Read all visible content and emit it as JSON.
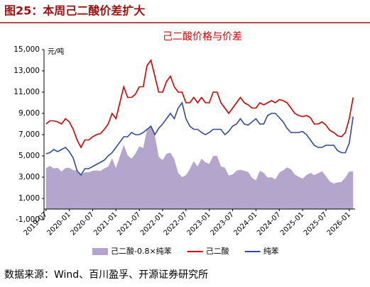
{
  "header": {
    "title": "图25：本周己二酸价差扩大"
  },
  "chart_data": {
    "type": "line",
    "title": "己二酸价格与价差",
    "y_unit": "元/吨",
    "x": [
      "2019-07",
      "2019-08",
      "2019-09",
      "2019-10",
      "2019-11",
      "2019-12",
      "2020-01",
      "2020-02",
      "2020-03",
      "2020-04",
      "2020-05",
      "2020-06",
      "2020-07",
      "2020-08",
      "2020-09",
      "2020-10",
      "2020-11",
      "2020-12",
      "2021-01",
      "2021-02",
      "2021-03",
      "2021-04",
      "2021-05",
      "2021-06",
      "2021-07",
      "2021-08",
      "2021-09",
      "2021-10",
      "2021-11",
      "2021-12",
      "2022-01",
      "2022-02",
      "2022-03",
      "2022-04",
      "2022-05",
      "2022-06",
      "2022-07",
      "2022-08",
      "2022-09",
      "2022-10",
      "2022-11",
      "2022-12",
      "2023-01",
      "2023-02",
      "2023-03",
      "2023-04",
      "2023-05",
      "2023-06",
      "2023-07",
      "2023-08",
      "2023-09",
      "2023-10",
      "2023-11",
      "2023-12",
      "2024-01",
      "2024-02",
      "2024-03",
      "2024-04",
      "2024-05",
      "2024-06",
      "2024-07",
      "2024-08",
      "2024-09",
      "2024-10",
      "2024-11",
      "2024-12",
      "2025-01",
      "2025-02",
      "2025-03",
      "2025-04",
      "2025-05",
      "2025-06",
      "2025-07",
      "2025-08",
      "2025-09",
      "2025-10",
      "2025-11",
      "2025-12",
      "2026-01",
      "2026-02"
    ],
    "xticks": [
      "2019-07",
      "2020-01",
      "2020-07",
      "2021-01",
      "2021-07",
      "2022-01",
      "2022-07",
      "2023-01",
      "2023-07",
      "2024-01",
      "2024-07",
      "2025-01",
      "2025-07",
      "2026-01"
    ],
    "series": [
      {
        "name": "己二酸-0.8×纯苯",
        "style": "area",
        "color": "#b3a5cc",
        "values": [
          3840,
          4060,
          3820,
          3880,
          3520,
          3860,
          3880,
          3660,
          3620,
          3240,
          3460,
          3460,
          3600,
          3640,
          3580,
          3820,
          4000,
          4760,
          3860,
          4960,
          6060,
          5060,
          4740,
          5200,
          5900,
          5740,
          7500,
          7760,
          6900,
          4920,
          4600,
          5200,
          5300,
          4700,
          3400,
          3000,
          3200,
          3760,
          4500,
          4000,
          4740,
          4400,
          4240,
          5000,
          5000,
          4000,
          3900,
          3160,
          3260,
          3600,
          3700,
          3600,
          3480,
          2940,
          2700,
          3600,
          3400,
          2960,
          3000,
          2800,
          3420,
          3640,
          3920,
          3740,
          3240,
          3040,
          2860,
          3200,
          3400,
          3200,
          3360,
          3560,
          3100,
          2600,
          2400,
          2500,
          2560,
          2960,
          3540,
          3540
        ]
      },
      {
        "name": "己二酸",
        "style": "line",
        "color": "#d40000",
        "values": [
          8000,
          8300,
          8300,
          8200,
          8000,
          8500,
          8200,
          7500,
          6500,
          5800,
          6500,
          6500,
          6800,
          7000,
          7100,
          7500,
          8000,
          9000,
          8500,
          10000,
          11500,
          10500,
          10500,
          10800,
          11500,
          11500,
          13500,
          14000,
          12500,
          11000,
          11000,
          12000,
          12500,
          11500,
          11000,
          11000,
          10000,
          10000,
          10500,
          10000,
          10500,
          10000,
          10000,
          11000,
          11000,
          10000,
          9500,
          9000,
          9500,
          10000,
          10500,
          10000,
          9800,
          9500,
          9500,
          10000,
          9800,
          10000,
          10200,
          10000,
          10300,
          10200,
          10000,
          9500,
          9000,
          8800,
          8700,
          8800,
          8600,
          8000,
          8000,
          8200,
          7900,
          7400,
          7200,
          6900,
          6800,
          7200,
          8500,
          10500
        ]
      },
      {
        "name": "纯苯",
        "style": "line",
        "color": "#2f4c9a",
        "values": [
          5200,
          5300,
          5600,
          5400,
          5600,
          5800,
          5400,
          4800,
          3600,
          3200,
          3800,
          3800,
          4000,
          4200,
          4400,
          4600,
          5000,
          5300,
          5800,
          6300,
          6800,
          6800,
          7200,
          7000,
          7000,
          7200,
          7500,
          7800,
          7000,
          7600,
          8000,
          8500,
          9000,
          8500,
          9500,
          10000,
          8500,
          7800,
          7500,
          7500,
          7200,
          7000,
          7200,
          7500,
          7500,
          7500,
          7000,
          7300,
          7800,
          8000,
          8500,
          8000,
          7900,
          8200,
          8500,
          8000,
          8000,
          8800,
          9000,
          9000,
          8600,
          8200,
          7600,
          7200,
          7200,
          7200,
          7300,
          7000,
          6500,
          6000,
          5800,
          5800,
          6000,
          6000,
          6000,
          5500,
          5300,
          5300,
          6200,
          8700
        ]
      }
    ],
    "ylim": [
      -1000,
      15000
    ],
    "yticks": [
      {
        "value": -1000,
        "label": "-1,000"
      },
      {
        "value": 1000,
        "label": "1,000"
      },
      {
        "value": 3000,
        "label": "3,000"
      },
      {
        "value": 5000,
        "label": "5,000"
      },
      {
        "value": 7000,
        "label": "7,000"
      },
      {
        "value": 9000,
        "label": "9,000"
      },
      {
        "value": 11000,
        "label": "11,000"
      },
      {
        "value": 13000,
        "label": "13,000"
      },
      {
        "value": 15000,
        "label": "15,000"
      }
    ],
    "legend": "bottom"
  },
  "footer": {
    "source": "数据来源：Wind、百川盈孚、开源证券研究所"
  }
}
